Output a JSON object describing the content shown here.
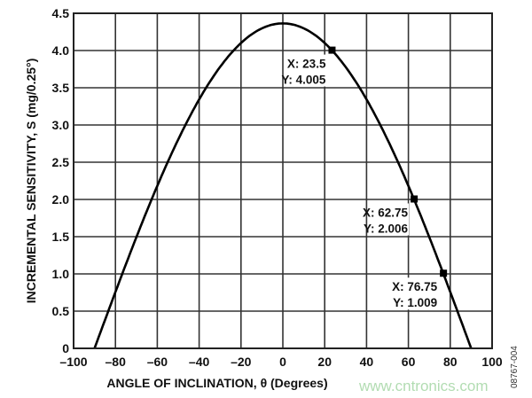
{
  "chart_data": {
    "type": "line",
    "title": "",
    "xlabel": "ANGLE OF INCLINATION, θ (Degrees)",
    "ylabel": "INCREMENTAL SENSITIVITY, S (mg/0.25°)",
    "xlim": [
      -100,
      100
    ],
    "ylim": [
      0,
      4.5
    ],
    "xticks": [
      "–100",
      "–80",
      "–60",
      "–40",
      "–20",
      "0",
      "20",
      "40",
      "60",
      "80",
      "100"
    ],
    "yticks": [
      "0",
      "0.5",
      "1.0",
      "1.5",
      "2.0",
      "2.5",
      "3.0",
      "3.5",
      "4.0",
      "4.5"
    ],
    "grid": true,
    "series": [
      {
        "x": [
          -90,
          -80,
          -70,
          -60,
          -50,
          -40,
          -30,
          -20,
          -10,
          0,
          10,
          20,
          30,
          40,
          50,
          60,
          70,
          80,
          90
        ],
        "y": [
          0,
          0.758,
          1.492,
          2.182,
          2.805,
          3.343,
          3.779,
          4.1,
          4.297,
          4.364,
          4.297,
          4.1,
          3.779,
          3.343,
          2.805,
          2.182,
          1.492,
          0.758,
          0
        ],
        "color": "#000000"
      }
    ],
    "annotations": [
      {
        "x": 23.5,
        "y": 4.005,
        "line1": "X: 23.5",
        "line2": "Y: 4.005"
      },
      {
        "x": 62.75,
        "y": 2.006,
        "line1": "X: 62.75",
        "line2": "Y: 2.006"
      },
      {
        "x": 76.75,
        "y": 1.009,
        "line1": "X: 76.75",
        "line2": "Y: 1.009"
      }
    ],
    "figure_id": "08767-004",
    "watermark": "www.cntronics.com"
  }
}
